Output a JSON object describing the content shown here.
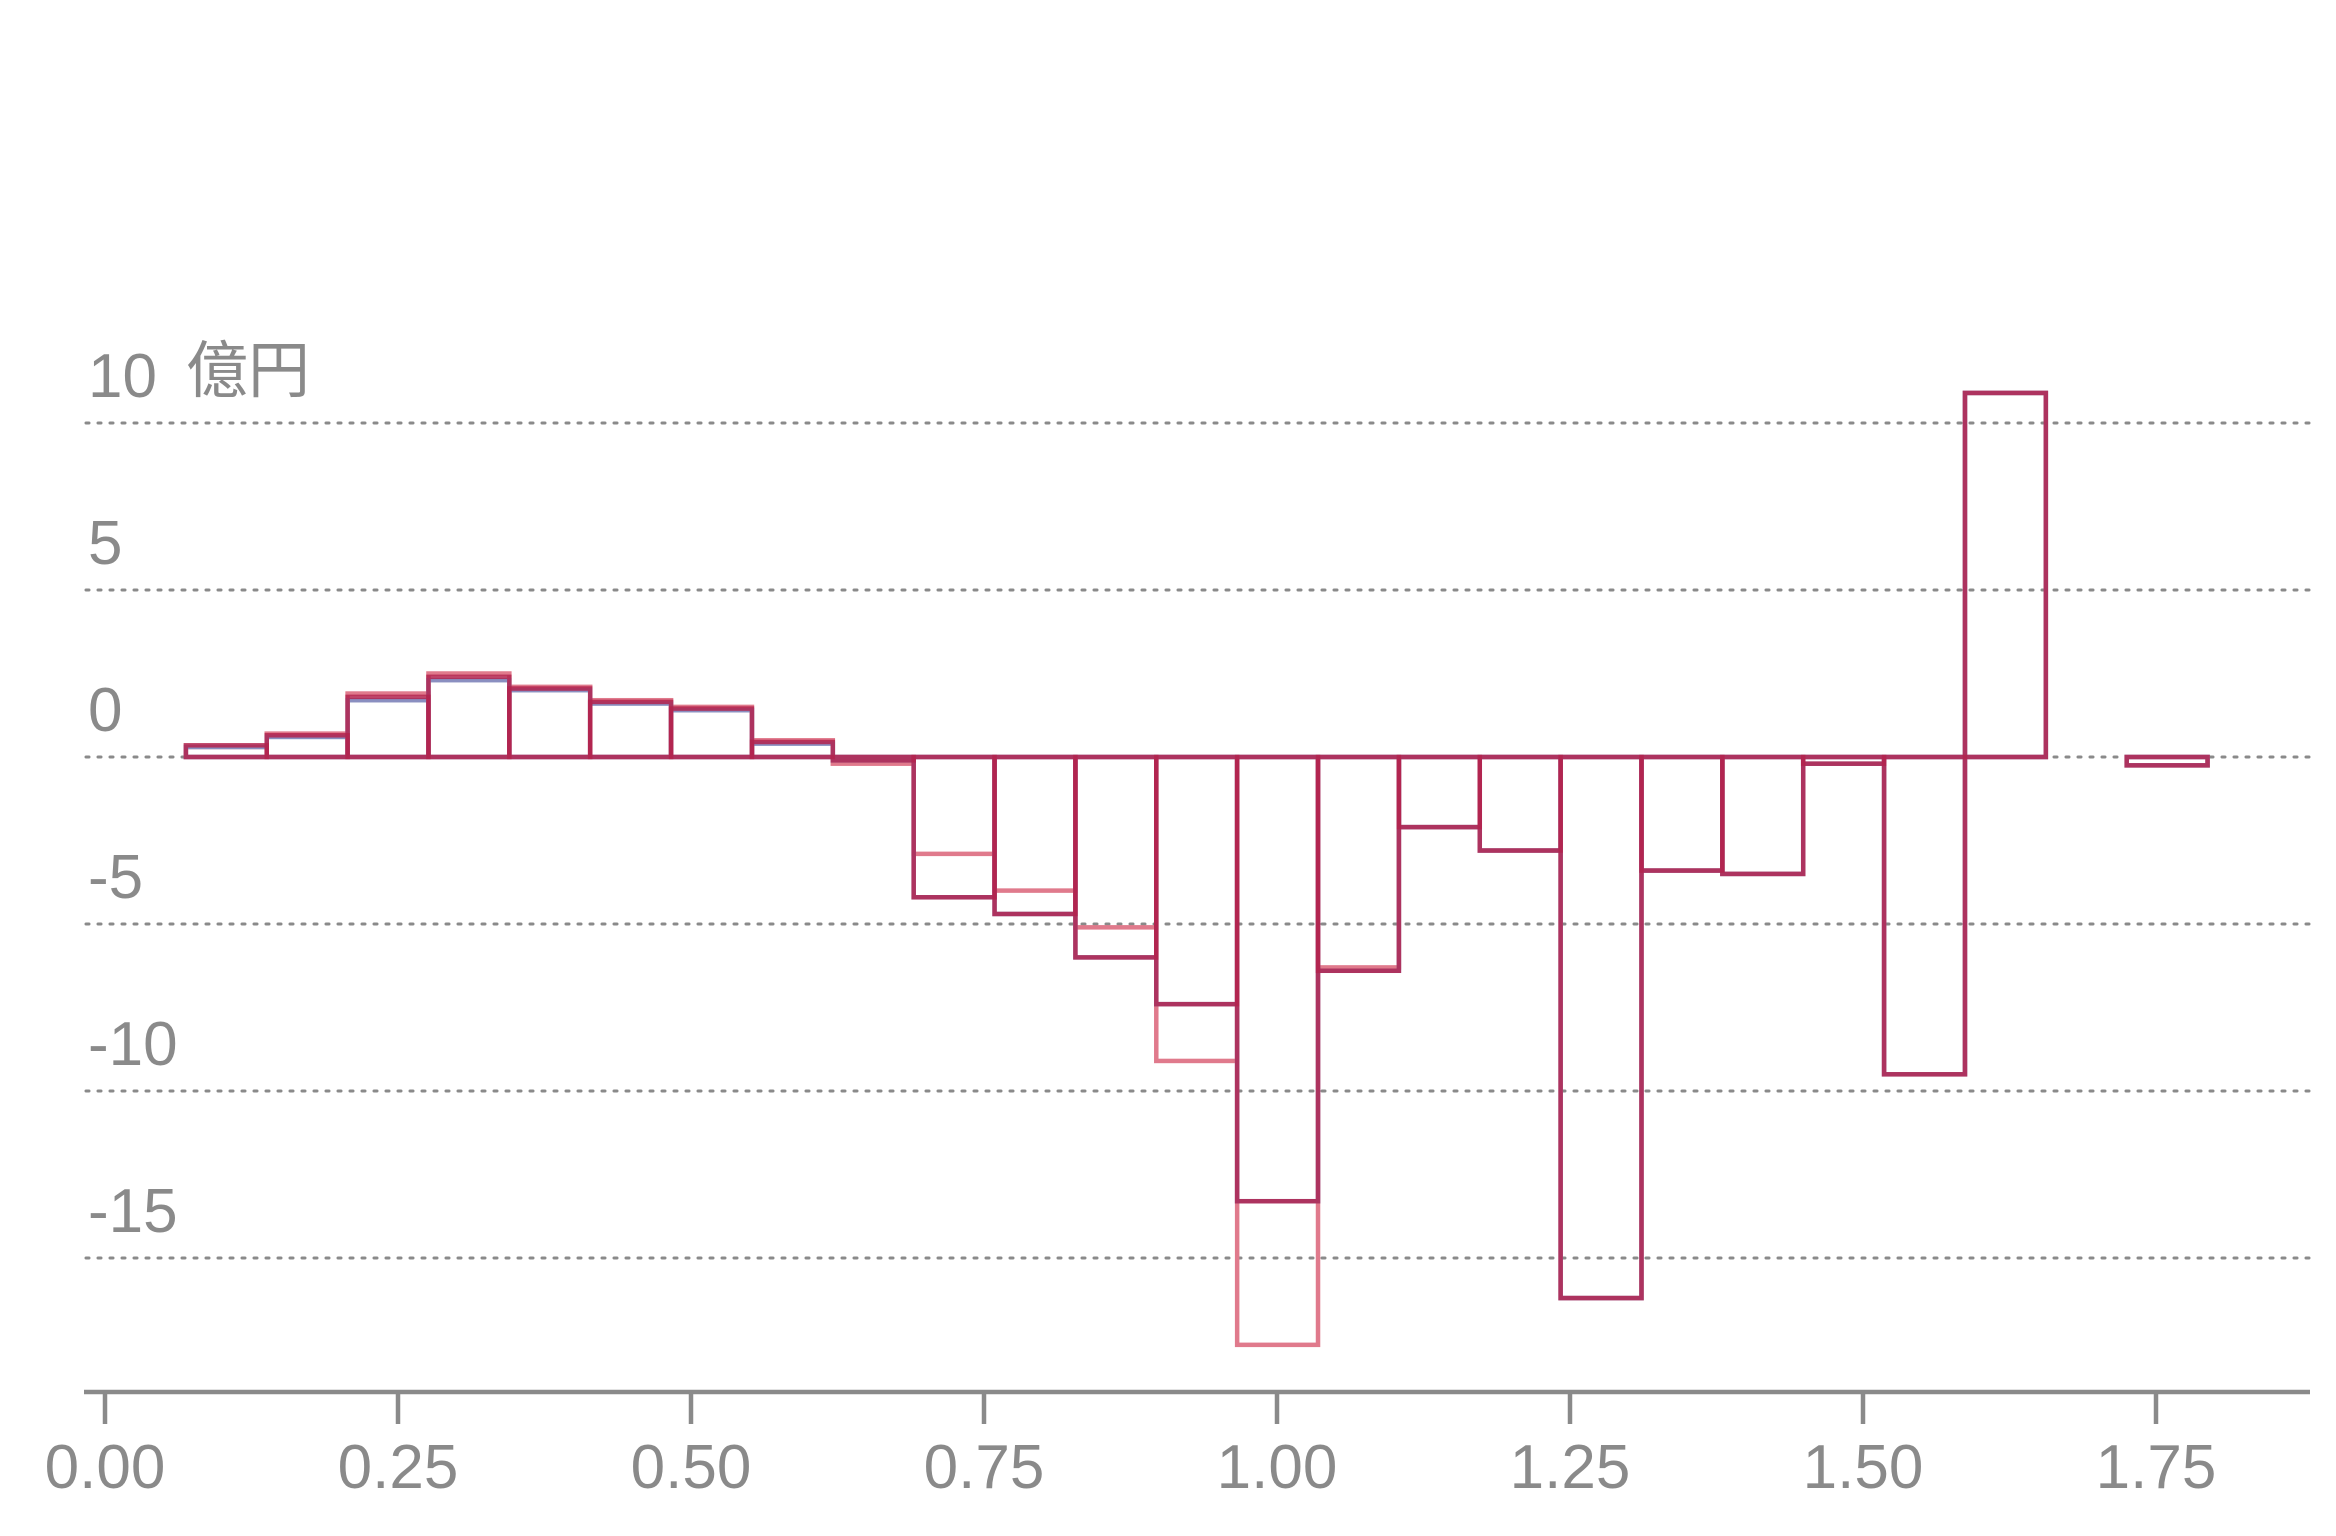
{
  "chart_data": {
    "type": "bar",
    "title": "",
    "xlabel": "",
    "ylabel": "",
    "y_unit_label": "億円",
    "ylim": [
      -20,
      12
    ],
    "xlim": [
      -0.02,
      1.88
    ],
    "grid": "horizontal dotted",
    "y_ticks": [
      -15,
      -10,
      -5,
      0,
      5,
      10
    ],
    "y_tick_labels": [
      "-15",
      "-10",
      "-5",
      "0",
      "5",
      "10"
    ],
    "x_ticks": [
      0.0,
      0.25,
      0.5,
      0.75,
      1.0,
      1.25,
      1.5,
      1.75
    ],
    "x_tick_labels": [
      "0.00",
      "0.25",
      "0.50",
      "0.75",
      "1.00",
      "1.25",
      "1.50",
      "1.75"
    ],
    "bin_width": 0.069,
    "x": [
      0.069,
      0.138,
      0.207,
      0.276,
      0.345,
      0.414,
      0.483,
      0.552,
      0.621,
      0.69,
      0.759,
      0.828,
      0.897,
      0.966,
      1.035,
      1.104,
      1.173,
      1.242,
      1.311,
      1.38,
      1.449,
      1.518,
      1.587,
      1.725
    ],
    "series": [
      {
        "color": "#e07a8c",
        "values": [
          0.3,
          0.7,
          1.9,
          2.5,
          2.1,
          1.7,
          1.5,
          0.5,
          -0.2,
          -2.9,
          -4.0,
          -5.1,
          -9.1,
          -17.6,
          -6.3,
          -2.1,
          -2.8,
          -16.2,
          -3.4,
          -3.5,
          -0.2,
          -9.5,
          10.9,
          -0.25
        ]
      },
      {
        "color": "#8a8fc0",
        "values": [
          0.3,
          0.6,
          1.7,
          2.3,
          2.0,
          1.6,
          1.4,
          0.4,
          -0.1,
          -4.2,
          -4.7,
          -6.0,
          -7.4,
          -13.3,
          -6.4,
          -2.1,
          -2.8,
          -16.2,
          -3.4,
          -3.5,
          -0.2,
          -9.5,
          10.9,
          -0.25
        ]
      },
      {
        "color": "#b3234d",
        "values": [
          0.35,
          0.65,
          1.8,
          2.4,
          2.05,
          1.65,
          1.45,
          0.45,
          -0.1,
          -4.2,
          -4.7,
          -6.0,
          -7.4,
          -13.3,
          -6.4,
          -2.1,
          -2.8,
          -16.2,
          -3.4,
          -3.5,
          -0.2,
          -9.5,
          10.9,
          -0.25
        ]
      }
    ]
  }
}
